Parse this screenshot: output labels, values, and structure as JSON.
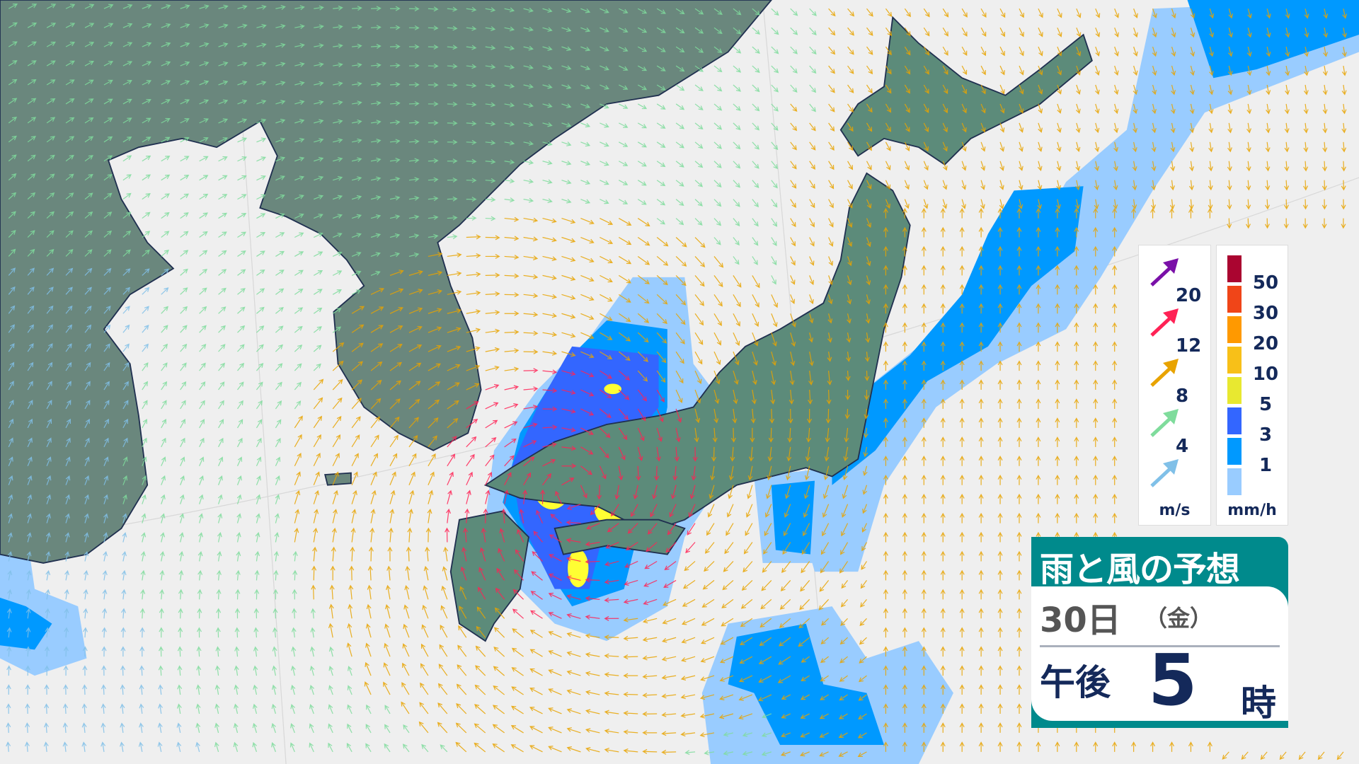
{
  "title": "雨と風の予想",
  "forecast": {
    "date": "30日",
    "day_of_week": "（金）",
    "period": "午後",
    "hour": "5",
    "hour_unit": "時"
  },
  "wind_legend": {
    "unit": "m/s",
    "items": [
      {
        "label": "20",
        "color": "#7a10a8"
      },
      {
        "label": "12",
        "color": "#ff2255"
      },
      {
        "label": "8",
        "color": "#e8a300"
      },
      {
        "label": "4",
        "color": "#7fdc9c"
      },
      {
        "label": "",
        "color": "#80c0e8"
      }
    ]
  },
  "rain_legend": {
    "unit": "mm/h",
    "levels": [
      {
        "label": "50",
        "color": "#aa0530"
      },
      {
        "label": "30",
        "color": "#f04518"
      },
      {
        "label": "20",
        "color": "#ff9900"
      },
      {
        "label": "10",
        "color": "#f8c018"
      },
      {
        "label": "5",
        "color": "#e8e830"
      },
      {
        "label": "3",
        "color": "#3366ff"
      },
      {
        "label": "1",
        "color": "#0099ff"
      },
      {
        "label": "",
        "color": "#99ccff"
      }
    ]
  },
  "map_colors": {
    "sea": "#efefef",
    "land": "#5c8b7a",
    "continent": "#6a877d"
  }
}
